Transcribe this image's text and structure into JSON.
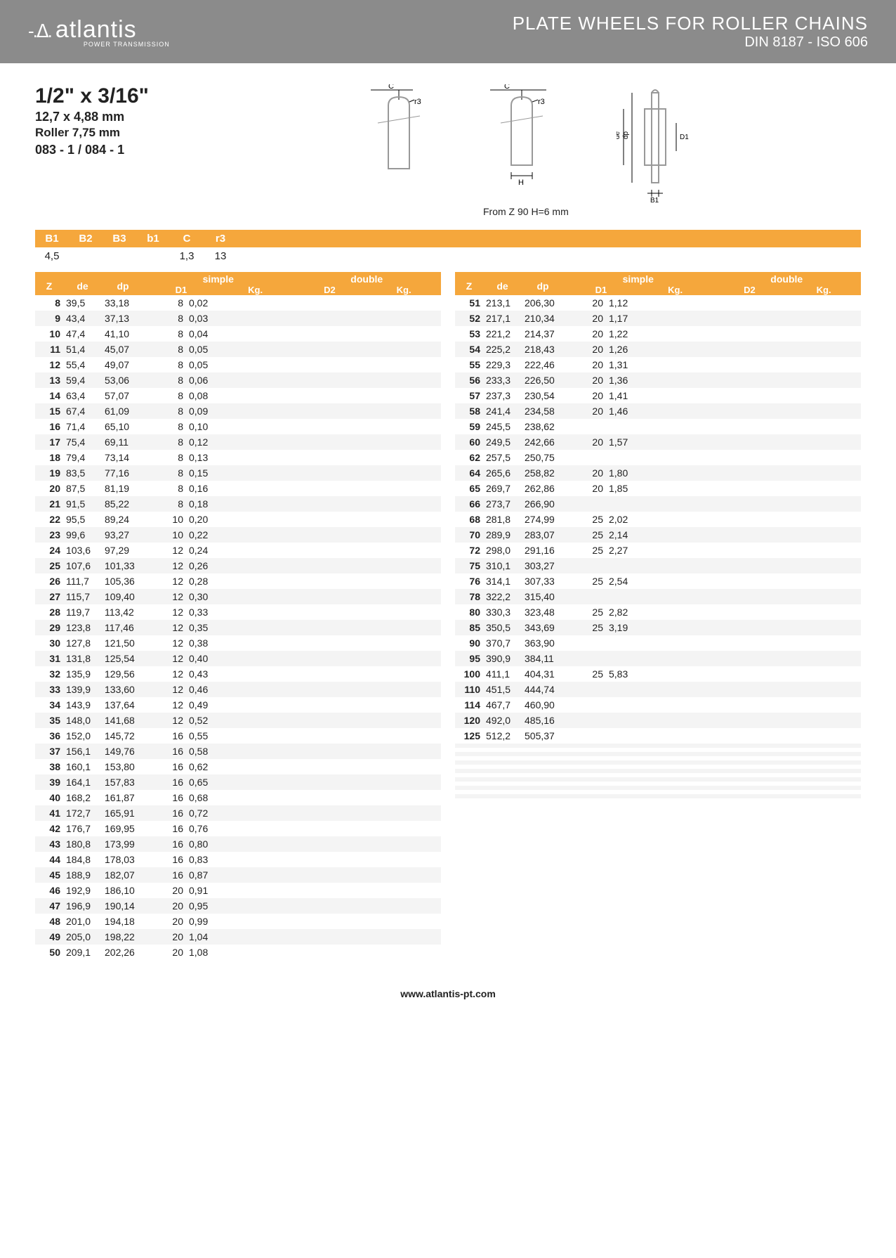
{
  "header": {
    "brand": "atlantis",
    "brand_sub": "POWER TRANSMISSION",
    "title": "PLATE WHEELS FOR ROLLER CHAINS",
    "subtitle": "DIN 8187 - ISO 606"
  },
  "spec": {
    "main": "1/2\" x 3/16\"",
    "mm": "12,7 x 4,88 mm",
    "roller": "Roller 7,75 mm",
    "code": "083 - 1 / 084 - 1"
  },
  "note": "From Z 90 H=6 mm",
  "params": {
    "headers": [
      "B1",
      "B2",
      "B3",
      "b1",
      "C",
      "r3"
    ],
    "values": [
      "4,5",
      "",
      "",
      "",
      "1,3",
      "13"
    ]
  },
  "table_headers": {
    "z": "Z",
    "de": "de",
    "dp": "dp",
    "simple": "simple",
    "double": "double",
    "d1": "D1",
    "kg1": "Kg.",
    "d2": "D2",
    "kg2": "Kg."
  },
  "left_rows": [
    [
      "8",
      "39,5",
      "33,18",
      "8",
      "0,02",
      "",
      ""
    ],
    [
      "9",
      "43,4",
      "37,13",
      "8",
      "0,03",
      "",
      ""
    ],
    [
      "10",
      "47,4",
      "41,10",
      "8",
      "0,04",
      "",
      ""
    ],
    [
      "11",
      "51,4",
      "45,07",
      "8",
      "0,05",
      "",
      ""
    ],
    [
      "12",
      "55,4",
      "49,07",
      "8",
      "0,05",
      "",
      ""
    ],
    [
      "13",
      "59,4",
      "53,06",
      "8",
      "0,06",
      "",
      ""
    ],
    [
      "14",
      "63,4",
      "57,07",
      "8",
      "0,08",
      "",
      ""
    ],
    [
      "15",
      "67,4",
      "61,09",
      "8",
      "0,09",
      "",
      ""
    ],
    [
      "16",
      "71,4",
      "65,10",
      "8",
      "0,10",
      "",
      ""
    ],
    [
      "17",
      "75,4",
      "69,11",
      "8",
      "0,12",
      "",
      ""
    ],
    [
      "18",
      "79,4",
      "73,14",
      "8",
      "0,13",
      "",
      ""
    ],
    [
      "19",
      "83,5",
      "77,16",
      "8",
      "0,15",
      "",
      ""
    ],
    [
      "20",
      "87,5",
      "81,19",
      "8",
      "0,16",
      "",
      ""
    ],
    [
      "21",
      "91,5",
      "85,22",
      "8",
      "0,18",
      "",
      ""
    ],
    [
      "22",
      "95,5",
      "89,24",
      "10",
      "0,20",
      "",
      ""
    ],
    [
      "23",
      "99,6",
      "93,27",
      "10",
      "0,22",
      "",
      ""
    ],
    [
      "24",
      "103,6",
      "97,29",
      "12",
      "0,24",
      "",
      ""
    ],
    [
      "25",
      "107,6",
      "101,33",
      "12",
      "0,26",
      "",
      ""
    ],
    [
      "26",
      "111,7",
      "105,36",
      "12",
      "0,28",
      "",
      ""
    ],
    [
      "27",
      "115,7",
      "109,40",
      "12",
      "0,30",
      "",
      ""
    ],
    [
      "28",
      "119,7",
      "113,42",
      "12",
      "0,33",
      "",
      ""
    ],
    [
      "29",
      "123,8",
      "117,46",
      "12",
      "0,35",
      "",
      ""
    ],
    [
      "30",
      "127,8",
      "121,50",
      "12",
      "0,38",
      "",
      ""
    ],
    [
      "31",
      "131,8",
      "125,54",
      "12",
      "0,40",
      "",
      ""
    ],
    [
      "32",
      "135,9",
      "129,56",
      "12",
      "0,43",
      "",
      ""
    ],
    [
      "33",
      "139,9",
      "133,60",
      "12",
      "0,46",
      "",
      ""
    ],
    [
      "34",
      "143,9",
      "137,64",
      "12",
      "0,49",
      "",
      ""
    ],
    [
      "35",
      "148,0",
      "141,68",
      "12",
      "0,52",
      "",
      ""
    ],
    [
      "36",
      "152,0",
      "145,72",
      "16",
      "0,55",
      "",
      ""
    ],
    [
      "37",
      "156,1",
      "149,76",
      "16",
      "0,58",
      "",
      ""
    ],
    [
      "38",
      "160,1",
      "153,80",
      "16",
      "0,62",
      "",
      ""
    ],
    [
      "39",
      "164,1",
      "157,83",
      "16",
      "0,65",
      "",
      ""
    ],
    [
      "40",
      "168,2",
      "161,87",
      "16",
      "0,68",
      "",
      ""
    ],
    [
      "41",
      "172,7",
      "165,91",
      "16",
      "0,72",
      "",
      ""
    ],
    [
      "42",
      "176,7",
      "169,95",
      "16",
      "0,76",
      "",
      ""
    ],
    [
      "43",
      "180,8",
      "173,99",
      "16",
      "0,80",
      "",
      ""
    ],
    [
      "44",
      "184,8",
      "178,03",
      "16",
      "0,83",
      "",
      ""
    ],
    [
      "45",
      "188,9",
      "182,07",
      "16",
      "0,87",
      "",
      ""
    ],
    [
      "46",
      "192,9",
      "186,10",
      "20",
      "0,91",
      "",
      ""
    ],
    [
      "47",
      "196,9",
      "190,14",
      "20",
      "0,95",
      "",
      ""
    ],
    [
      "48",
      "201,0",
      "194,18",
      "20",
      "0,99",
      "",
      ""
    ],
    [
      "49",
      "205,0",
      "198,22",
      "20",
      "1,04",
      "",
      ""
    ],
    [
      "50",
      "209,1",
      "202,26",
      "20",
      "1,08",
      "",
      ""
    ]
  ],
  "right_rows": [
    [
      "51",
      "213,1",
      "206,30",
      "20",
      "1,12",
      "",
      ""
    ],
    [
      "52",
      "217,1",
      "210,34",
      "20",
      "1,17",
      "",
      ""
    ],
    [
      "53",
      "221,2",
      "214,37",
      "20",
      "1,22",
      "",
      ""
    ],
    [
      "54",
      "225,2",
      "218,43",
      "20",
      "1,26",
      "",
      ""
    ],
    [
      "55",
      "229,3",
      "222,46",
      "20",
      "1,31",
      "",
      ""
    ],
    [
      "56",
      "233,3",
      "226,50",
      "20",
      "1,36",
      "",
      ""
    ],
    [
      "57",
      "237,3",
      "230,54",
      "20",
      "1,41",
      "",
      ""
    ],
    [
      "58",
      "241,4",
      "234,58",
      "20",
      "1,46",
      "",
      ""
    ],
    [
      "59",
      "245,5",
      "238,62",
      "",
      "",
      "",
      ""
    ],
    [
      "60",
      "249,5",
      "242,66",
      "20",
      "1,57",
      "",
      ""
    ],
    [
      "62",
      "257,5",
      "250,75",
      "",
      "",
      "",
      ""
    ],
    [
      "64",
      "265,6",
      "258,82",
      "20",
      "1,80",
      "",
      ""
    ],
    [
      "65",
      "269,7",
      "262,86",
      "20",
      "1,85",
      "",
      ""
    ],
    [
      "66",
      "273,7",
      "266,90",
      "",
      "",
      "",
      ""
    ],
    [
      "68",
      "281,8",
      "274,99",
      "25",
      "2,02",
      "",
      ""
    ],
    [
      "70",
      "289,9",
      "283,07",
      "25",
      "2,14",
      "",
      ""
    ],
    [
      "72",
      "298,0",
      "291,16",
      "25",
      "2,27",
      "",
      ""
    ],
    [
      "75",
      "310,1",
      "303,27",
      "",
      "",
      "",
      ""
    ],
    [
      "76",
      "314,1",
      "307,33",
      "25",
      "2,54",
      "",
      ""
    ],
    [
      "78",
      "322,2",
      "315,40",
      "",
      "",
      "",
      ""
    ],
    [
      "80",
      "330,3",
      "323,48",
      "25",
      "2,82",
      "",
      ""
    ],
    [
      "85",
      "350,5",
      "343,69",
      "25",
      "3,19",
      "",
      ""
    ],
    [
      "90",
      "370,7",
      "363,90",
      "",
      "",
      "",
      ""
    ],
    [
      "95",
      "390,9",
      "384,11",
      "",
      "",
      "",
      ""
    ],
    [
      "100",
      "411,1",
      "404,31",
      "25",
      "5,83",
      "",
      ""
    ],
    [
      "110",
      "451,5",
      "444,74",
      "",
      "",
      "",
      ""
    ],
    [
      "114",
      "467,7",
      "460,90",
      "",
      "",
      "",
      ""
    ],
    [
      "120",
      "492,0",
      "485,16",
      "",
      "",
      "",
      ""
    ],
    [
      "125",
      "512,2",
      "505,37",
      "",
      "",
      "",
      ""
    ],
    [
      "",
      "",
      "",
      "",
      "",
      "",
      ""
    ],
    [
      "",
      "",
      "",
      "",
      "",
      "",
      ""
    ],
    [
      "",
      "",
      "",
      "",
      "",
      "",
      ""
    ],
    [
      "",
      "",
      "",
      "",
      "",
      "",
      ""
    ],
    [
      "",
      "",
      "",
      "",
      "",
      "",
      ""
    ],
    [
      "",
      "",
      "",
      "",
      "",
      "",
      ""
    ],
    [
      "",
      "",
      "",
      "",
      "",
      "",
      ""
    ],
    [
      "",
      "",
      "",
      "",
      "",
      "",
      ""
    ],
    [
      "",
      "",
      "",
      "",
      "",
      "",
      ""
    ],
    [
      "",
      "",
      "",
      "",
      "",
      "",
      ""
    ],
    [
      "",
      "",
      "",
      "",
      "",
      "",
      ""
    ],
    [
      "",
      "",
      "",
      "",
      "",
      "",
      ""
    ],
    [
      "",
      "",
      "",
      "",
      "",
      "",
      ""
    ],
    [
      "",
      "",
      "",
      "",
      "",
      "",
      ""
    ]
  ],
  "footer": "www.atlantis-pt.com",
  "colors": {
    "accent": "#f5a73c",
    "header_bg": "#8b8b8b",
    "row_odd": "#f4f4f4"
  }
}
